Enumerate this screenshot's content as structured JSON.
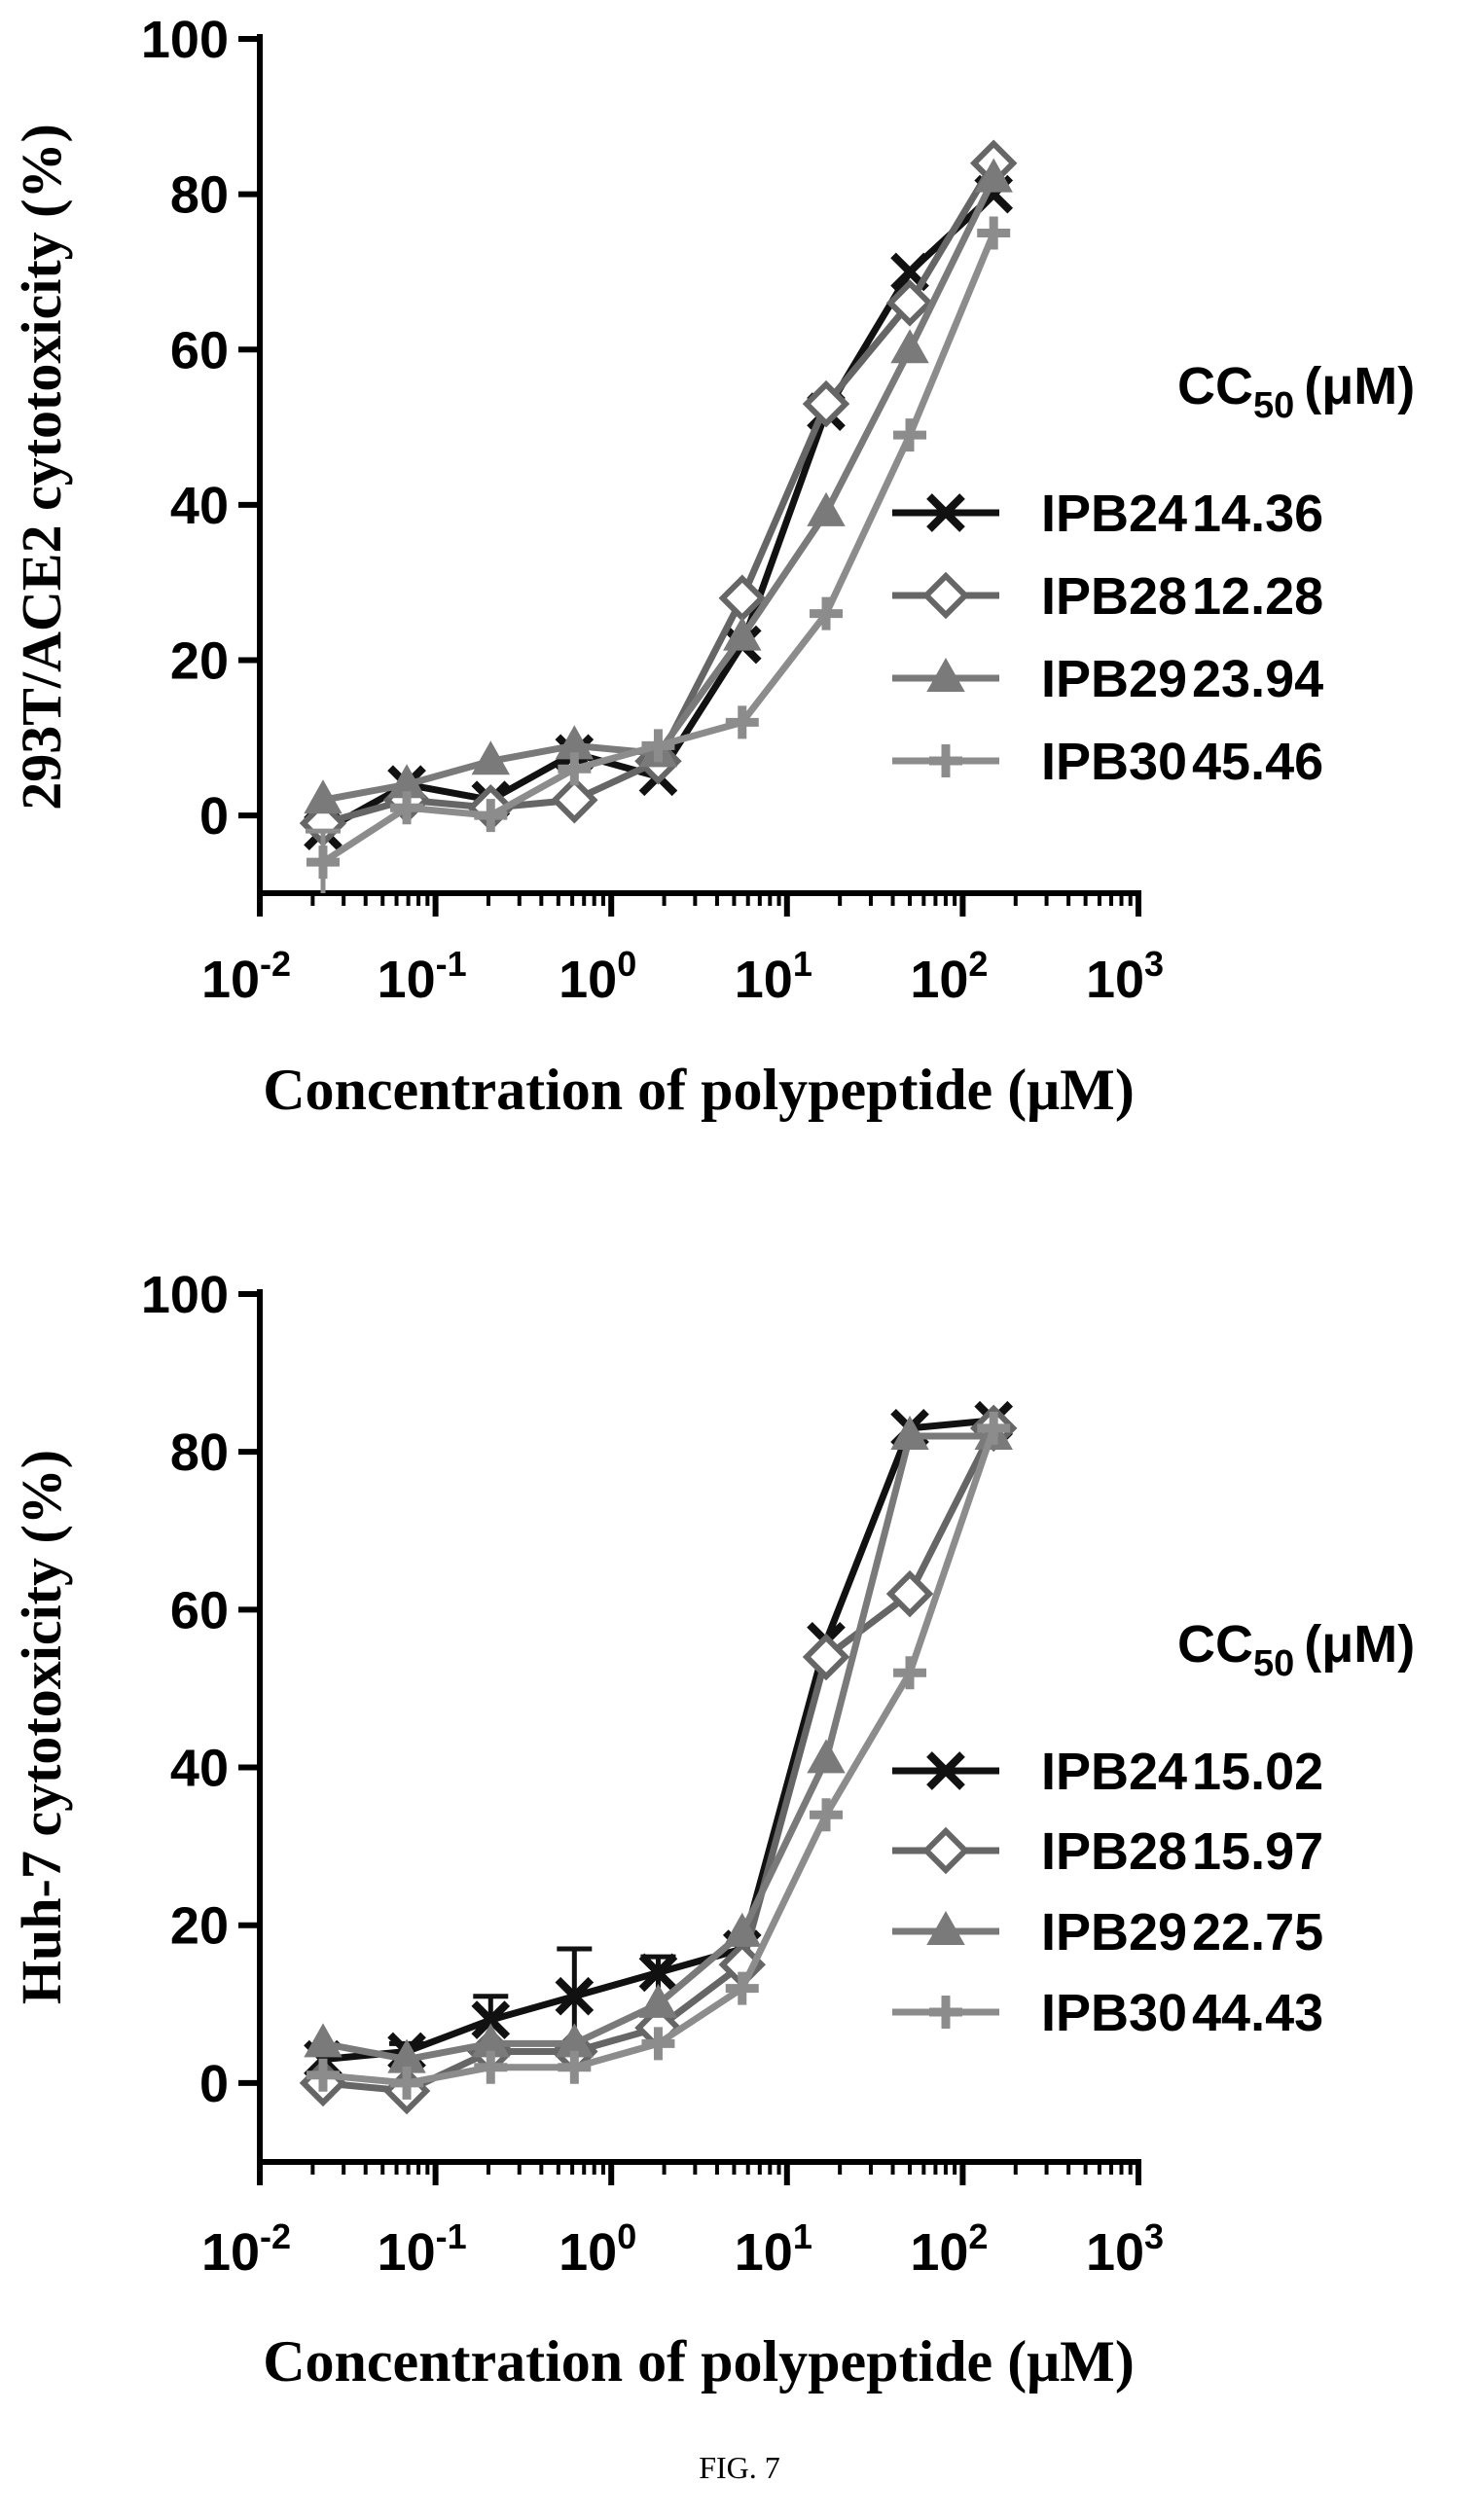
{
  "caption": "FIG. 7",
  "chart_data": [
    {
      "type": "line",
      "x_scale": "log",
      "xlabel": "Concentration of polypeptide (μM)",
      "ylabel": "293T/ACE2 cytotoxicity (%)",
      "xlim": [
        0.01,
        1000
      ],
      "ylim": [
        -10,
        100
      ],
      "x_ticks": [
        0.01,
        0.1,
        1,
        10,
        100,
        1000
      ],
      "x_tick_labels": [
        {
          "base": "10",
          "exp": "-2"
        },
        {
          "base": "10",
          "exp": "-1"
        },
        {
          "base": "10",
          "exp": "0"
        },
        {
          "base": "10",
          "exp": "1"
        },
        {
          "base": "10",
          "exp": "2"
        },
        {
          "base": "10",
          "exp": "3"
        }
      ],
      "y_ticks": [
        0,
        20,
        40,
        60,
        80,
        100
      ],
      "y_tick_labels": [
        "0",
        "20",
        "40",
        "60",
        "80",
        "100"
      ],
      "legend": {
        "title_main": "CC",
        "title_sub": "50",
        "title_unit": "(μM)",
        "placement": "right"
      },
      "x": [
        0.0229,
        0.0686,
        0.206,
        0.617,
        1.85,
        5.56,
        16.7,
        50,
        150
      ],
      "series": [
        {
          "name": "IPB24",
          "cc50": "14.36",
          "marker": "x",
          "color": "#111111",
          "values": [
            -2,
            4,
            2,
            8,
            5,
            22,
            52,
            70,
            80
          ],
          "errors": [
            0,
            0,
            0,
            0,
            0,
            0,
            0,
            0,
            0
          ]
        },
        {
          "name": "IPB28",
          "cc50": "12.28",
          "marker": "diamond",
          "color": "#666666",
          "values": [
            -1,
            2,
            1,
            2,
            7,
            28,
            53,
            66,
            84
          ],
          "errors": [
            0,
            0,
            0,
            0,
            0,
            0,
            0,
            0,
            0
          ]
        },
        {
          "name": "IPB29",
          "cc50": "23.94",
          "marker": "triangle",
          "color": "#7a7a7a",
          "values": [
            2,
            4,
            7,
            9,
            8,
            23,
            39,
            60,
            82
          ],
          "errors": [
            0,
            0,
            0,
            0,
            0,
            0,
            0,
            0,
            0
          ]
        },
        {
          "name": "IPB30",
          "cc50": "45.46",
          "marker": "plus",
          "color": "#8c8c8c",
          "values": [
            -6,
            1,
            0,
            6,
            9,
            12,
            26,
            49,
            75
          ],
          "errors": [
            4,
            0,
            0,
            0,
            0,
            0,
            0,
            0,
            0
          ]
        }
      ]
    },
    {
      "type": "line",
      "x_scale": "log",
      "xlabel": "Concentration of polypeptide (μM)",
      "ylabel": "Huh-7 cytotoxicity (%)",
      "xlim": [
        0.01,
        1000
      ],
      "ylim": [
        -10,
        100
      ],
      "x_ticks": [
        0.01,
        0.1,
        1,
        10,
        100,
        1000
      ],
      "x_tick_labels": [
        {
          "base": "10",
          "exp": "-2"
        },
        {
          "base": "10",
          "exp": "-1"
        },
        {
          "base": "10",
          "exp": "0"
        },
        {
          "base": "10",
          "exp": "1"
        },
        {
          "base": "10",
          "exp": "2"
        },
        {
          "base": "10",
          "exp": "3"
        }
      ],
      "y_ticks": [
        0,
        20,
        40,
        60,
        80,
        100
      ],
      "y_tick_labels": [
        "0",
        "20",
        "40",
        "60",
        "80",
        "100"
      ],
      "legend": {
        "title_main": "CC",
        "title_sub": "50",
        "title_unit": "(μM)",
        "placement": "right"
      },
      "x": [
        0.0229,
        0.0686,
        0.206,
        0.617,
        1.85,
        5.56,
        16.7,
        50,
        150
      ],
      "series": [
        {
          "name": "IPB24",
          "cc50": "15.02",
          "marker": "x",
          "color": "#111111",
          "values": [
            3,
            4,
            8,
            11,
            14,
            17,
            56,
            83,
            84
          ],
          "errors": [
            0,
            1,
            3,
            6,
            2,
            0,
            0,
            0,
            0
          ]
        },
        {
          "name": "IPB28",
          "cc50": "15.97",
          "marker": "diamond",
          "color": "#666666",
          "values": [
            0,
            -1,
            4,
            4,
            7,
            15,
            54,
            62,
            83
          ],
          "errors": [
            0,
            0,
            0,
            0,
            0,
            0,
            0,
            0,
            0
          ]
        },
        {
          "name": "IPB29",
          "cc50": "22.75",
          "marker": "triangle",
          "color": "#7a7a7a",
          "values": [
            5,
            3,
            5,
            5,
            10,
            19,
            41,
            82,
            82
          ],
          "errors": [
            0,
            0,
            0,
            0,
            0,
            0,
            0,
            0,
            0
          ]
        },
        {
          "name": "IPB30",
          "cc50": "44.43",
          "marker": "plus",
          "color": "#8c8c8c",
          "values": [
            1,
            0,
            2,
            2,
            5,
            12,
            34,
            52,
            83
          ],
          "errors": [
            0,
            0,
            0,
            0,
            0,
            0,
            0,
            0,
            0
          ]
        }
      ]
    }
  ]
}
